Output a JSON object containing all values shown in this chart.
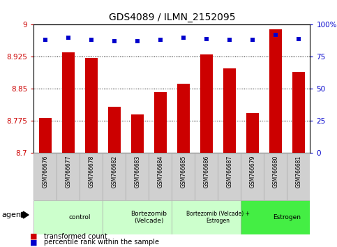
{
  "title": "GDS4089 / ILMN_2152095",
  "samples": [
    "GSM766676",
    "GSM766677",
    "GSM766678",
    "GSM766682",
    "GSM766683",
    "GSM766684",
    "GSM766685",
    "GSM766686",
    "GSM766687",
    "GSM766679",
    "GSM766680",
    "GSM766681"
  ],
  "red_values": [
    8.782,
    8.935,
    8.922,
    8.808,
    8.791,
    8.843,
    8.862,
    8.93,
    8.898,
    8.793,
    8.99,
    8.89
  ],
  "blue_values": [
    88,
    90,
    88,
    87,
    87,
    88,
    90,
    89,
    88,
    88,
    92,
    89
  ],
  "ylim_left": [
    8.7,
    9.0
  ],
  "ylim_right": [
    0,
    100
  ],
  "yticks_left": [
    8.7,
    8.775,
    8.85,
    8.925,
    9.0
  ],
  "ytick_labels_left": [
    "8.7",
    "8.775",
    "8.85",
    "8.925",
    "9"
  ],
  "yticks_right": [
    0,
    25,
    50,
    75,
    100
  ],
  "ytick_labels_right": [
    "0",
    "25",
    "50",
    "75",
    "100%"
  ],
  "groups": [
    {
      "label": "control",
      "start": 0,
      "end": 3,
      "color": "#ccffcc"
    },
    {
      "label": "Bortezomib\n(Velcade)",
      "start": 3,
      "end": 6,
      "color": "#ccffcc"
    },
    {
      "label": "Bortezomib (Velcade) +\nEstrogen",
      "start": 6,
      "end": 9,
      "color": "#ccffcc"
    },
    {
      "label": "Estrogen",
      "start": 9,
      "end": 12,
      "color": "#44ee44"
    }
  ],
  "bar_color": "#cc0000",
  "dot_color": "#0000cc",
  "bg_color": "#ffffff",
  "plot_bg": "#ffffff",
  "grid_color": "#000000",
  "sample_bg": "#d0d0d0",
  "agent_label": "agent",
  "legend_red": "transformed count",
  "legend_blue": "percentile rank within the sample",
  "base_value": 8.7,
  "bar_width": 0.55
}
